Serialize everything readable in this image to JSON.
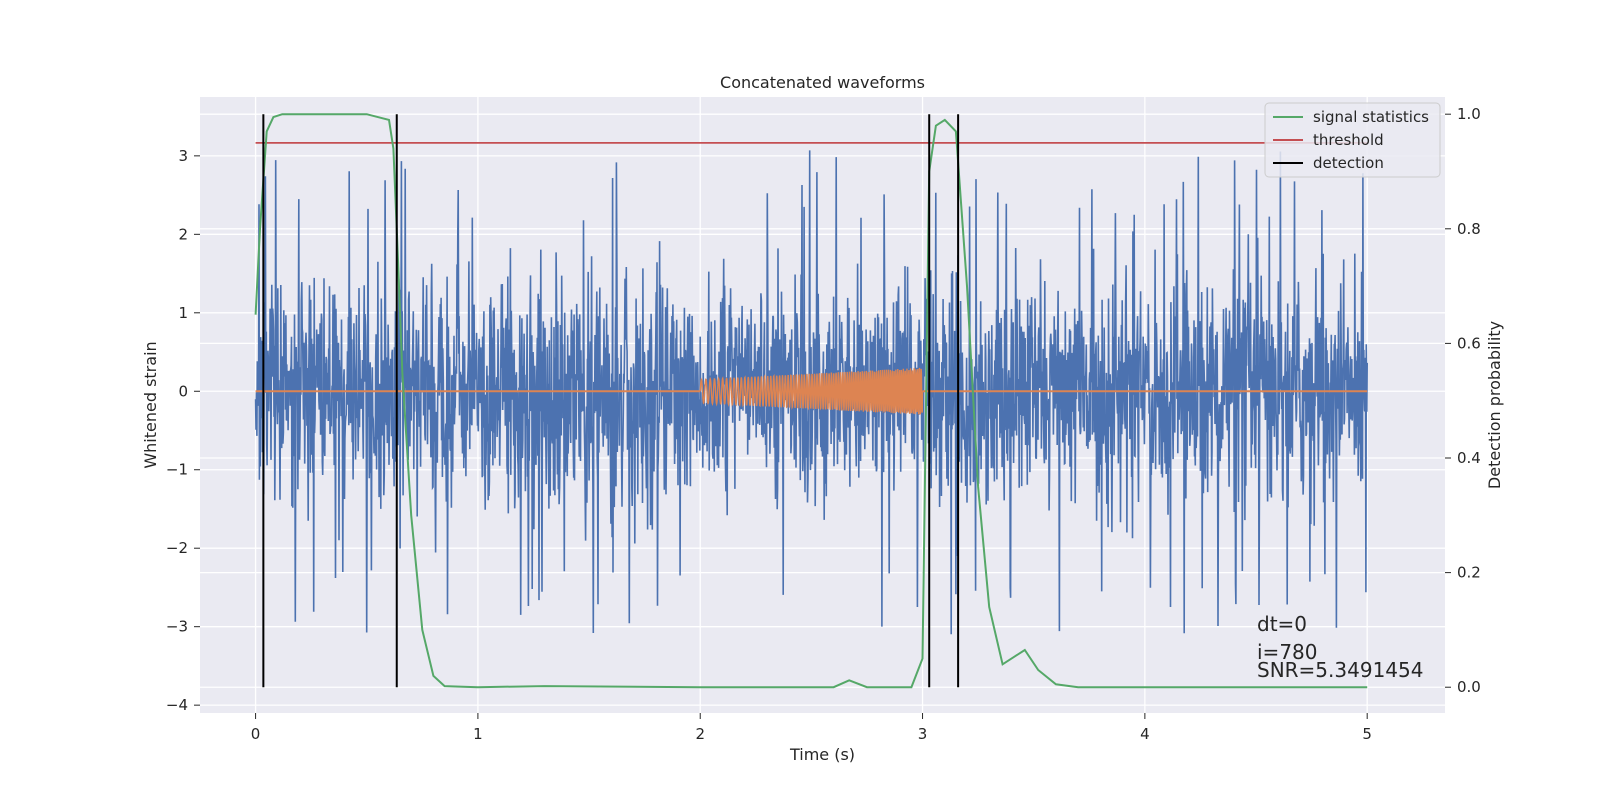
{
  "chart_data": {
    "type": "line",
    "title": "Concatenated waveforms",
    "xlabel": "Time (s)",
    "ylabel": "Whitened strain",
    "ylabel_right": "Detection probability",
    "xlim": [
      -0.25,
      5.35
    ],
    "ylim": [
      -4.1,
      3.75
    ],
    "ylim_right": [
      -0.045,
      1.03
    ],
    "x_ticks": [
      0,
      1,
      2,
      3,
      4,
      5
    ],
    "y_ticks": [
      -4,
      -3,
      -2,
      -1,
      0,
      1,
      2,
      3
    ],
    "y_ticks_right": [
      0.0,
      0.2,
      0.4,
      0.6,
      0.8,
      1.0
    ],
    "grid": true,
    "legend_position": "top-right",
    "colors": {
      "strain": "#4c72b0",
      "waveform": "#dd8452",
      "signal_statistics": "#55a868",
      "threshold": "#c44e52",
      "detection": "#000000",
      "background": "#eaeaf2"
    },
    "series": [
      {
        "name": "",
        "axis": "left",
        "kind": "noise",
        "x_range": [
          0,
          5
        ],
        "typical_range": [
          -1.4,
          1.4
        ],
        "extreme_range": [
          -3.6,
          3.25
        ]
      },
      {
        "name": "",
        "axis": "left",
        "kind": "chirp",
        "baseline": 0,
        "x_range": [
          0,
          5
        ],
        "chirp_x_range": [
          2.0,
          3.0
        ],
        "amplitude_start": 0.15,
        "amplitude_end": 0.3
      },
      {
        "name": "signal statistics",
        "axis": "right",
        "x": [
          0,
          0.02,
          0.05,
          0.08,
          0.12,
          0.2,
          0.5,
          0.6,
          0.62,
          0.64,
          0.66,
          0.7,
          0.75,
          0.8,
          0.85,
          1.0,
          1.3,
          2.0,
          2.6,
          2.67,
          2.75,
          2.95,
          3.0,
          3.03,
          3.06,
          3.1,
          3.15,
          3.2,
          3.25,
          3.3,
          3.36,
          3.42,
          3.46,
          3.52,
          3.6,
          3.7,
          4.0,
          5.0
        ],
        "y": [
          0.65,
          0.8,
          0.97,
          0.995,
          1.0,
          1.0,
          1.0,
          0.99,
          0.94,
          0.75,
          0.55,
          0.3,
          0.1,
          0.02,
          0.002,
          0.0,
          0.002,
          0.0,
          0.0,
          0.012,
          0.0,
          0.0,
          0.05,
          0.9,
          0.98,
          0.99,
          0.97,
          0.7,
          0.35,
          0.14,
          0.04,
          0.055,
          0.065,
          0.03,
          0.005,
          0.0,
          0.0,
          0.0
        ]
      },
      {
        "name": "threshold",
        "axis": "right",
        "x": [
          0,
          5.0
        ],
        "y": [
          0.95,
          0.95
        ]
      },
      {
        "name": "detection",
        "axis": "right",
        "x_lines": [
          0.035,
          0.635,
          3.03,
          3.16
        ],
        "y_range": [
          0.0,
          1.0
        ]
      }
    ],
    "legend": [
      "signal statistics",
      "threshold",
      "detection"
    ],
    "annotations": [
      "dt=0",
      "i=780",
      "SNR=5.3491454"
    ]
  }
}
